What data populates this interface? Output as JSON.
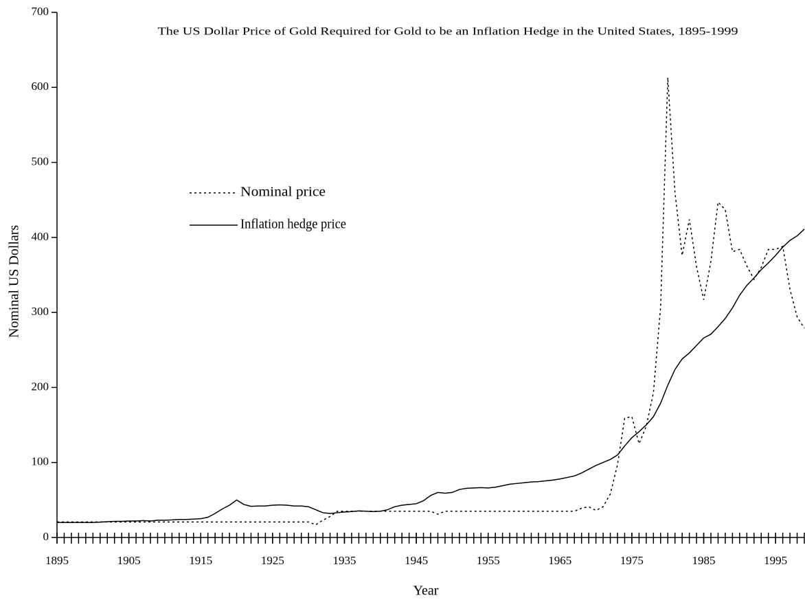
{
  "chart_data": {
    "type": "line",
    "title": "The US Dollar Price of Gold Required for Gold to be an Inflation Hedge in the United States, 1895-1999",
    "xlabel": "Year",
    "ylabel": "Nominal US Dollars",
    "x": [
      1895,
      1896,
      1897,
      1898,
      1899,
      1900,
      1901,
      1902,
      1903,
      1904,
      1905,
      1906,
      1907,
      1908,
      1909,
      1910,
      1911,
      1912,
      1913,
      1914,
      1915,
      1916,
      1917,
      1918,
      1919,
      1920,
      1921,
      1922,
      1923,
      1924,
      1925,
      1926,
      1927,
      1928,
      1929,
      1930,
      1931,
      1932,
      1933,
      1934,
      1935,
      1936,
      1937,
      1938,
      1939,
      1940,
      1941,
      1942,
      1943,
      1944,
      1945,
      1946,
      1947,
      1948,
      1949,
      1950,
      1951,
      1952,
      1953,
      1954,
      1955,
      1956,
      1957,
      1958,
      1959,
      1960,
      1961,
      1962,
      1963,
      1964,
      1965,
      1966,
      1967,
      1968,
      1969,
      1970,
      1971,
      1972,
      1973,
      1974,
      1975,
      1976,
      1977,
      1978,
      1979,
      1980,
      1981,
      1982,
      1983,
      1984,
      1985,
      1986,
      1987,
      1988,
      1989,
      1990,
      1991,
      1992,
      1993,
      1994,
      1995,
      1996,
      1997,
      1998,
      1999
    ],
    "series": [
      {
        "name": "Nominal price",
        "color": "#000000",
        "style": "dotted",
        "values": [
          20.67,
          20.67,
          20.67,
          20.67,
          20.67,
          20.67,
          20.67,
          20.67,
          20.67,
          20.67,
          20.67,
          20.67,
          20.67,
          20.67,
          20.67,
          20.67,
          20.67,
          20.67,
          20.67,
          20.67,
          20.67,
          20.67,
          20.67,
          20.67,
          20.67,
          20.67,
          20.67,
          20.67,
          20.67,
          20.67,
          20.67,
          20.67,
          20.67,
          20.67,
          20.67,
          20.67,
          17,
          23,
          28,
          35,
          35,
          35,
          35,
          35,
          35,
          35,
          35,
          35,
          35,
          35,
          35,
          35,
          35,
          31,
          35,
          35,
          35,
          35,
          35,
          35,
          35,
          35,
          35,
          35,
          35,
          35,
          35,
          35,
          35,
          35,
          35,
          35,
          35,
          39,
          41,
          36,
          41,
          58,
          97,
          159,
          161,
          125,
          148,
          193,
          307,
          613,
          460,
          376,
          424,
          361,
          317,
          368,
          447,
          437,
          381,
          384,
          362,
          344,
          360,
          384,
          384,
          388,
          331,
          294,
          279
        ]
      },
      {
        "name": "Inflation hedge price",
        "color": "#000000",
        "style": "solid",
        "values": [
          20,
          20,
          20,
          20,
          20,
          20,
          20.5,
          21,
          21.5,
          21.5,
          22,
          22,
          22.5,
          22,
          23,
          23,
          23.5,
          24,
          24,
          24.5,
          25,
          27,
          32,
          38,
          43,
          50,
          44,
          41.5,
          42,
          42,
          43,
          43.5,
          43,
          42,
          42,
          41,
          37,
          33,
          32,
          33,
          34,
          34.5,
          35.5,
          35,
          34.5,
          35,
          37,
          41,
          43,
          44,
          45,
          49,
          56,
          60,
          59,
          60,
          64,
          65.5,
          66,
          66.5,
          66,
          67,
          69,
          71,
          72,
          73,
          74,
          74.5,
          75.5,
          76.5,
          78,
          80,
          82,
          86,
          91,
          96,
          100,
          104,
          110,
          122,
          133,
          141,
          150,
          161,
          179,
          203,
          224,
          238,
          246,
          256,
          266,
          271,
          281,
          292,
          306,
          323,
          336,
          346,
          357,
          366,
          376,
          387,
          396,
          402,
          411
        ]
      }
    ],
    "xlim": [
      1895,
      1999
    ],
    "xticks": [
      1895,
      1905,
      1915,
      1925,
      1935,
      1945,
      1955,
      1965,
      1975,
      1985,
      1995
    ],
    "ylim": [
      0,
      700
    ],
    "yticks": [
      0,
      100,
      200,
      300,
      400,
      500,
      600,
      700
    ],
    "grid": false,
    "legend": "left"
  }
}
